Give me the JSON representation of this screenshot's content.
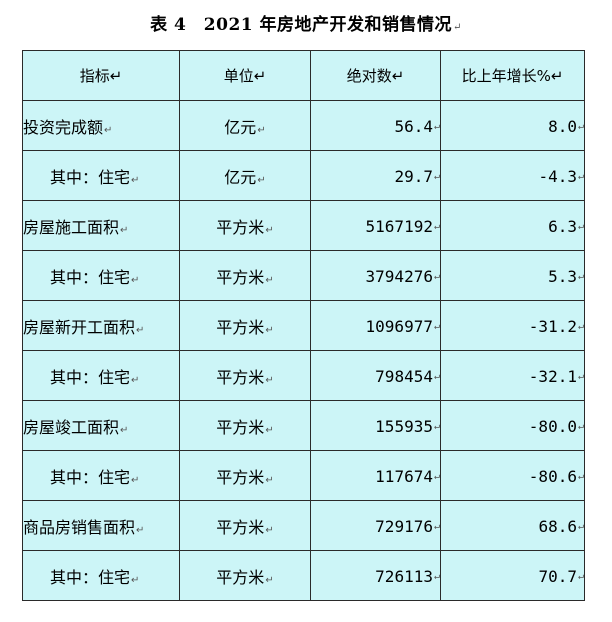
{
  "title": "表 4　2021 年房地产开发和销售情况",
  "para_mark": "↵",
  "table": {
    "headers": [
      "指标",
      "单位",
      "绝对数",
      "比上年增长%"
    ],
    "rows": [
      {
        "indicator": "投资完成额",
        "unit": "亿元",
        "absolute": "56.4",
        "growth": "8.0",
        "sub": false
      },
      {
        "indicator": "其中：住宅",
        "unit": "亿元",
        "absolute": "29.7",
        "growth": "-4.3",
        "sub": true
      },
      {
        "indicator": "房屋施工面积",
        "unit": "平方米",
        "absolute": "5167192",
        "growth": "6.3",
        "sub": false
      },
      {
        "indicator": "其中：住宅",
        "unit": "平方米",
        "absolute": "3794276",
        "growth": "5.3",
        "sub": true
      },
      {
        "indicator": "房屋新开工面积",
        "unit": "平方米",
        "absolute": "1096977",
        "growth": "-31.2",
        "sub": false
      },
      {
        "indicator": "其中：住宅",
        "unit": "平方米",
        "absolute": "798454",
        "growth": "-32.1",
        "sub": true
      },
      {
        "indicator": "房屋竣工面积",
        "unit": "平方米",
        "absolute": "155935",
        "growth": "-80.0",
        "sub": false
      },
      {
        "indicator": "其中：住宅",
        "unit": "平方米",
        "absolute": "117674",
        "growth": "-80.6",
        "sub": true
      },
      {
        "indicator": "商品房销售面积",
        "unit": "平方米",
        "absolute": "729176",
        "growth": "68.6",
        "sub": false
      },
      {
        "indicator": "其中：住宅",
        "unit": "平方米",
        "absolute": "726113",
        "growth": "70.7",
        "sub": true
      }
    ]
  },
  "colors": {
    "cell_background": "#ccf5f7",
    "border": "#2a2a2a"
  }
}
